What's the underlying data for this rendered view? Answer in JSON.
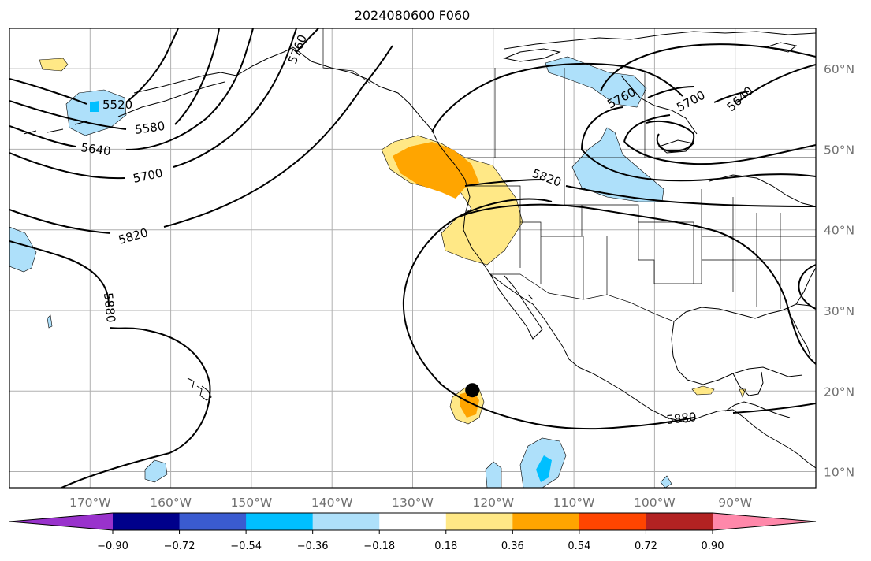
{
  "title": "2024080600 F060",
  "map": {
    "lon_range": [
      -180,
      -80
    ],
    "lat_range": [
      8,
      65
    ],
    "lat_ticks": [
      {
        "value": 10,
        "label": "10°N"
      },
      {
        "value": 20,
        "label": "20°N"
      },
      {
        "value": 30,
        "label": "30°N"
      },
      {
        "value": 40,
        "label": "40°N"
      },
      {
        "value": 50,
        "label": "50°N"
      },
      {
        "value": 60,
        "label": "60°N"
      }
    ],
    "lon_ticks": [
      {
        "value": -170,
        "label": "170°W"
      },
      {
        "value": -160,
        "label": "160°W"
      },
      {
        "value": -150,
        "label": "150°W"
      },
      {
        "value": -140,
        "label": "140°W"
      },
      {
        "value": -130,
        "label": "130°W"
      },
      {
        "value": -120,
        "label": "120°W"
      },
      {
        "value": -110,
        "label": "110°W"
      },
      {
        "value": -100,
        "label": "100°W"
      },
      {
        "value": -90,
        "label": "90°W"
      }
    ],
    "contour_labels": [
      "5520",
      "5580",
      "5640",
      "5700",
      "5760",
      "5820",
      "5880"
    ],
    "marker": {
      "lon": -122.6,
      "lat": 20.1
    }
  },
  "colorbar": {
    "colors": [
      "#9932cc",
      "#00008b",
      "#3a5bd0",
      "#00bfff",
      "#aee0fa",
      "#ffffff",
      "#ffe886",
      "#ffa500",
      "#ff4500",
      "#b22222",
      "#ff88aa"
    ],
    "ticks": [
      "−0.90",
      "−0.72",
      "−0.54",
      "−0.36",
      "−0.18",
      "0.18",
      "0.36",
      "0.54",
      "0.72",
      "0.90"
    ]
  }
}
